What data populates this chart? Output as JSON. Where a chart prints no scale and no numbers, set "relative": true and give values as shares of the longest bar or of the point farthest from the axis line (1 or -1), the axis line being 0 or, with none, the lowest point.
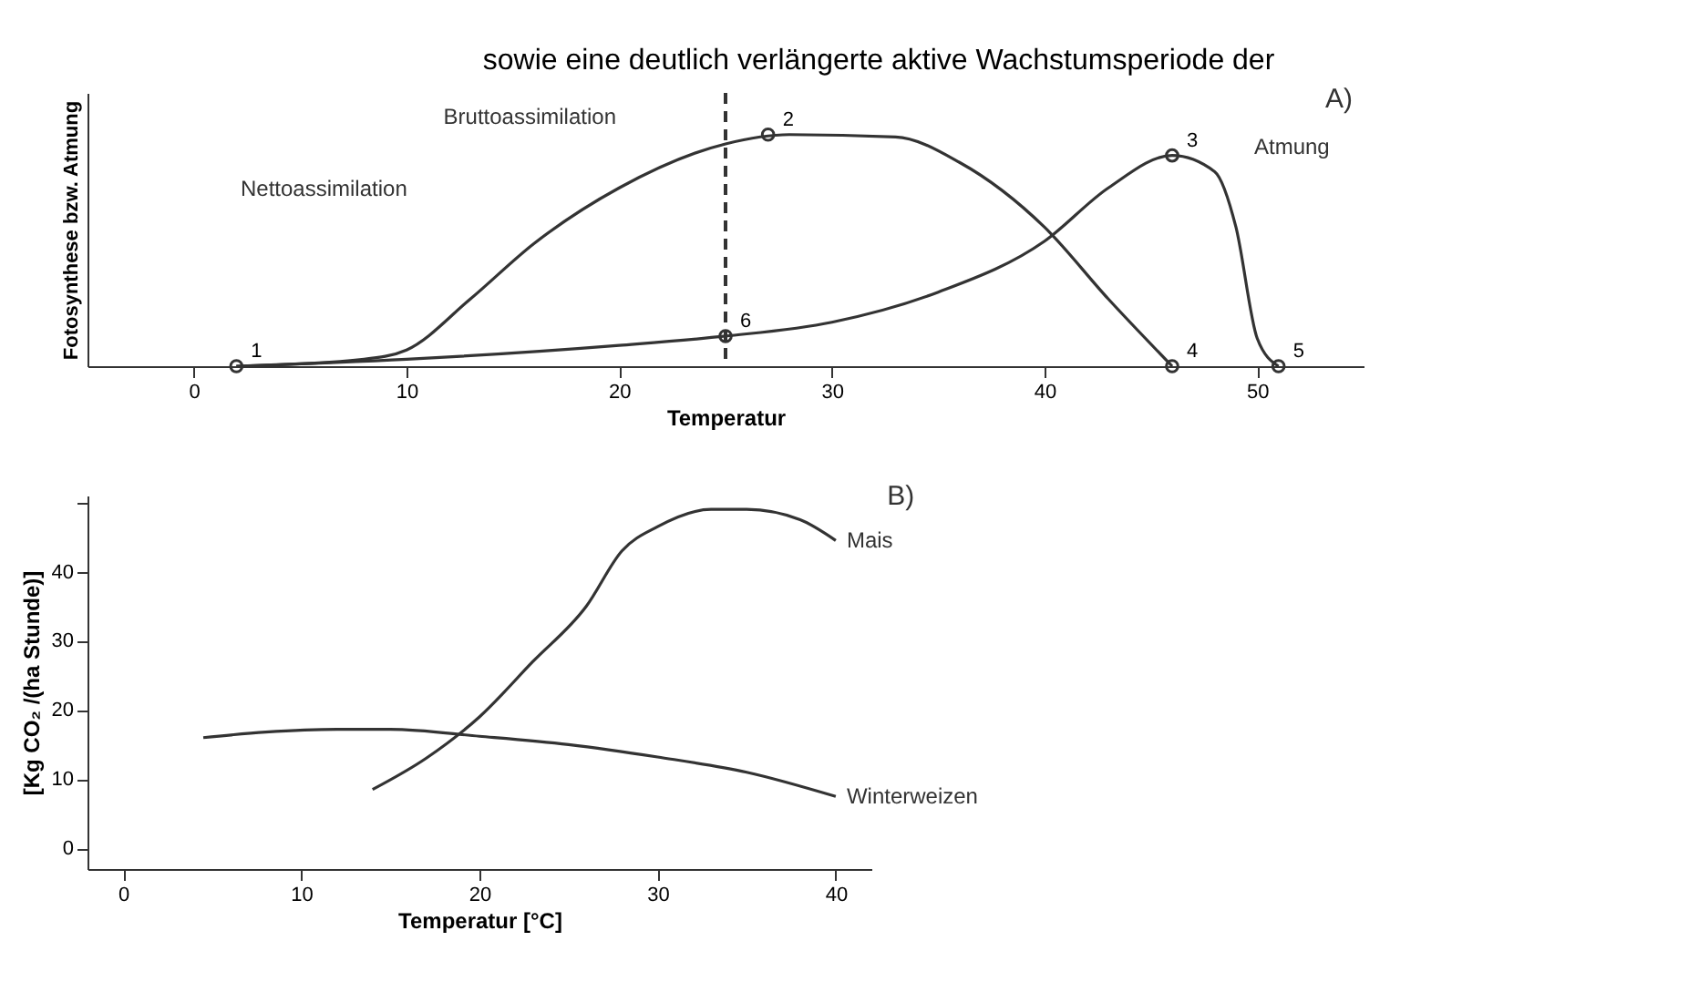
{
  "chart_data": [
    {
      "type": "line",
      "relative": true,
      "ylabel": "Fotosynthese bzw. Atmung",
      "xlabel": "Temperatur",
      "xlim": [
        -5,
        55
      ],
      "xticks": [
        0,
        10,
        20,
        30,
        40,
        50
      ],
      "grid": false,
      "line_style": "solid",
      "marker": "none",
      "series": [
        {
          "name": "Bruttoassimilation",
          "color": "#333333",
          "x": [
            2,
            8,
            10,
            13,
            16,
            20,
            25,
            28,
            33,
            36,
            40,
            43,
            46
          ],
          "values": [
            0,
            0.03,
            0.07,
            0.29,
            0.53,
            0.77,
            0.96,
            1,
            0.99,
            0.88,
            0.6,
            0.29,
            0
          ]
        },
        {
          "name": "Atmung",
          "color": "#333333",
          "x": [
            2,
            10,
            20,
            25,
            30,
            35,
            40,
            43,
            46,
            48,
            49,
            50,
            51
          ],
          "values": [
            0,
            0.03,
            0.09,
            0.13,
            0.19,
            0.32,
            0.54,
            0.77,
            0.91,
            0.84,
            0.6,
            0.12,
            0
          ]
        },
        {
          "type": "scatter",
          "marker": "circle",
          "color": "#333333",
          "x": [
            2,
            27,
            46,
            46,
            51,
            25
          ],
          "values": [
            0,
            1,
            0.91,
            0,
            0,
            0.13
          ]
        }
      ],
      "ref_lines": [
        {
          "axis": "x",
          "value": 25,
          "color": "#333333",
          "line_style": "dashed"
        }
      ],
      "annotations": [
        "sowie eine deutlich verlängerte aktive Wachstumsperiode der",
        "A)",
        "Nettoassimilation",
        {
          "text": "1",
          "x": 2,
          "y": 0
        },
        {
          "text": "2",
          "x": 27,
          "y": 1
        },
        {
          "text": "3",
          "x": 46,
          "y": 0.91
        },
        {
          "text": "4",
          "x": 46,
          "y": 0
        },
        {
          "text": "5",
          "x": 51,
          "y": 0
        },
        {
          "text": "6",
          "x": 25,
          "y": 0.13
        }
      ]
    },
    {
      "type": "line",
      "ylabel": "[Kg CO₂ /(ha Stunde)]",
      "xlabel": "Temperatur [°C]",
      "xlim": [
        -2,
        42
      ],
      "xticks": [
        0,
        10,
        20,
        30,
        40
      ],
      "ylim": [
        -3,
        51
      ],
      "yticks": [
        0,
        10,
        20,
        30,
        40,
        {
          "value": 50,
          "label": null
        }
      ],
      "grid": false,
      "line_style": "solid",
      "marker": "none",
      "series": [
        {
          "name": "Mais",
          "color": "#333333",
          "x": [
            14,
            17,
            20,
            23,
            26,
            28,
            30,
            33,
            35,
            38,
            40
          ],
          "values": [
            8.5,
            13,
            19,
            27,
            35,
            43,
            46.5,
            49,
            49,
            47.5,
            44.5
          ]
        },
        {
          "name": "Winterweizen",
          "color": "#333333",
          "x": [
            4.5,
            8,
            12,
            15,
            20,
            25,
            30,
            35,
            40
          ],
          "values": [
            16,
            16.8,
            17.2,
            17.2,
            16.2,
            15,
            13.2,
            11,
            7.5
          ]
        }
      ],
      "annotations": [
        "B)"
      ]
    }
  ]
}
